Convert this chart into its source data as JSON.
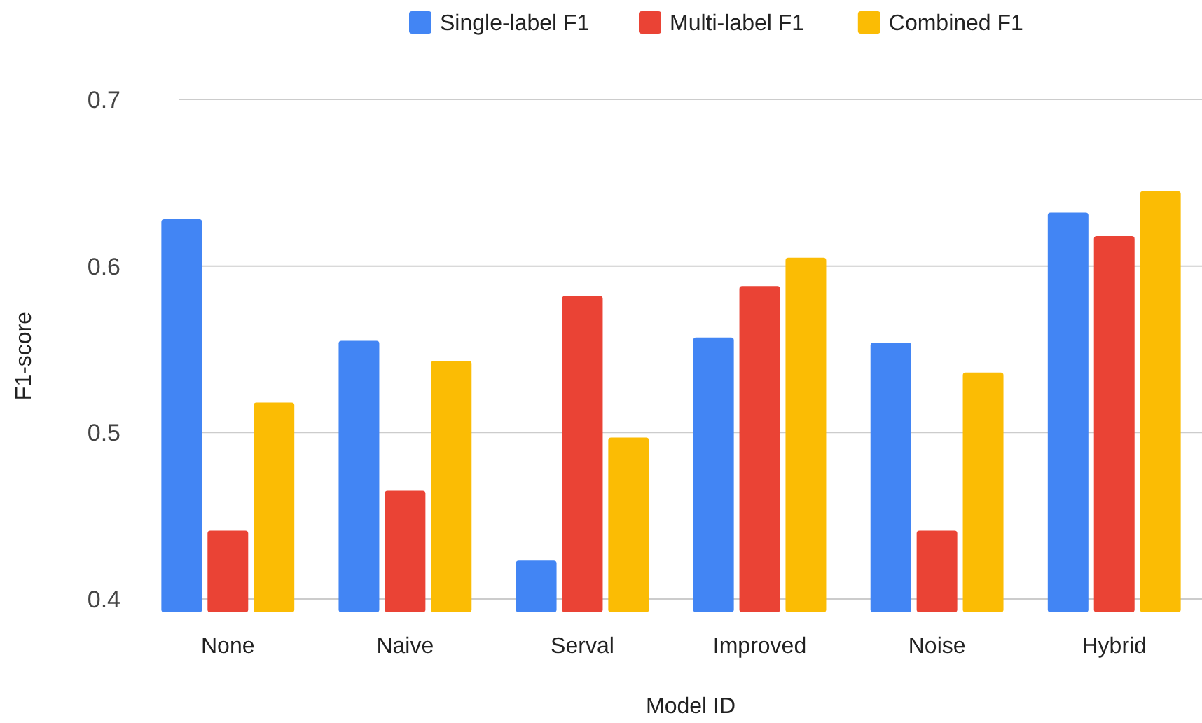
{
  "chart_data": {
    "type": "bar",
    "xlabel": "Model ID",
    "ylabel": "F1-score",
    "categories": [
      "None",
      "Naive",
      "Serval",
      "Improved",
      "Noise",
      "Hybrid"
    ],
    "series": [
      {
        "name": "Single-label F1",
        "color": "#4285f4",
        "values": [
          0.628,
          0.555,
          0.423,
          0.557,
          0.554,
          0.632
        ]
      },
      {
        "name": "Multi-label F1",
        "color": "#ea4335",
        "values": [
          0.441,
          0.465,
          0.582,
          0.588,
          0.441,
          0.618
        ]
      },
      {
        "name": "Combined F1",
        "color": "#fbbc04",
        "values": [
          0.518,
          0.543,
          0.497,
          0.605,
          0.536,
          0.645
        ]
      }
    ],
    "ylim": [
      0.392,
      0.7
    ],
    "yticks": [
      0.4,
      0.5,
      0.6,
      0.7
    ],
    "grid": "y",
    "legend": "top"
  }
}
